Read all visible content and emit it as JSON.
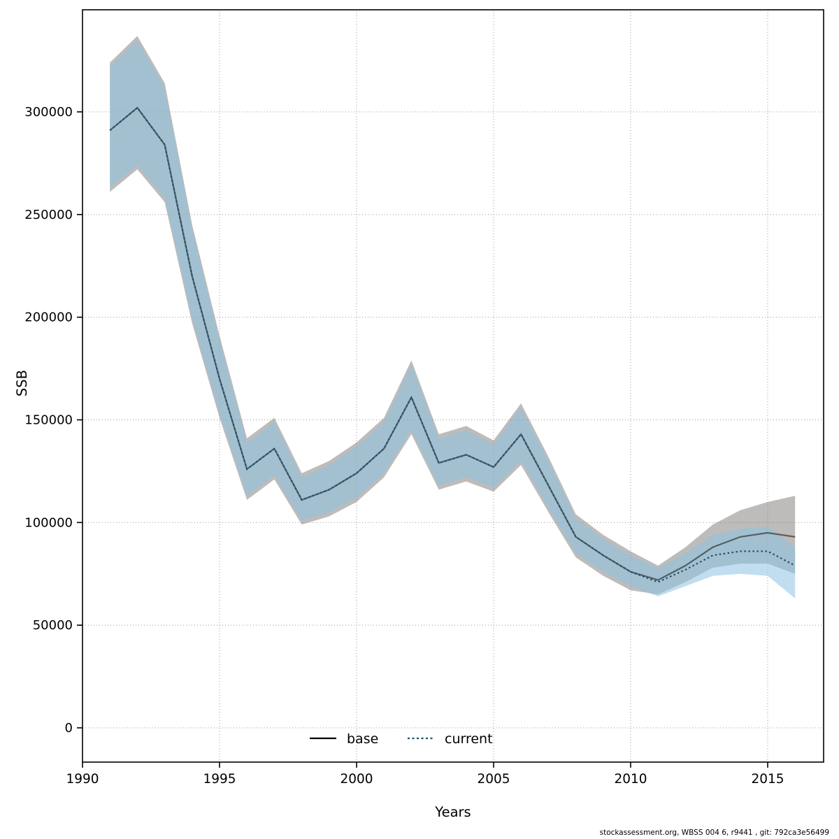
{
  "footer": {
    "text": "stockassessment.org, WBSS 004 6, r9441 , git: 792ca3e56499"
  },
  "chart_data": {
    "type": "line",
    "title": "",
    "xlabel": "Years",
    "ylabel": "SSB",
    "xlim": [
      1990,
      2017.3
    ],
    "ylim": [
      0,
      349000
    ],
    "grid": true,
    "legend_position": "bottom-center-inside",
    "x_ticks": [
      1990,
      1995,
      2000,
      2005,
      2010,
      2015
    ],
    "x_tick_labels": [
      "1990",
      "1995",
      "2000",
      "2005",
      "2010",
      "2015"
    ],
    "y_ticks": [
      0,
      50000,
      100000,
      150000,
      200000,
      250000,
      300000
    ],
    "y_tick_labels": [
      "0",
      "50000",
      "100000",
      "150000",
      "200000",
      "250000",
      "300000"
    ],
    "colors": {
      "grid": "#999999",
      "frame": "#000000",
      "base_line": "#000000",
      "base_band": "rgba(110,106,102,0.45)",
      "current_line": "#1b506e",
      "current_band": "rgba(140,195,225,0.55)"
    },
    "x": [
      1991,
      1992,
      1993,
      1994,
      1995,
      1996,
      1997,
      1998,
      1999,
      2000,
      2001,
      2002,
      2003,
      2004,
      2005,
      2006,
      2007,
      2008,
      2009,
      2010,
      2011,
      2012,
      2013,
      2014,
      2015,
      2016
    ],
    "series": [
      {
        "name": "base",
        "style": "solid",
        "mean": [
          291000,
          302000,
          284000,
          220000,
          170000,
          126000,
          136000,
          111000,
          116000,
          124000,
          136000,
          161000,
          129000,
          133000,
          127000,
          143000,
          118000,
          93000,
          84000,
          76000,
          72000,
          79000,
          88000,
          93000,
          95000,
          93000
        ],
        "lo": [
          261000,
          272000,
          256000,
          197000,
          151000,
          111000,
          121000,
          99000,
          103000,
          110000,
          122000,
          143000,
          116000,
          120000,
          115000,
          128000,
          105000,
          83000,
          74000,
          67000,
          65000,
          71000,
          78000,
          80000,
          80000,
          75000
        ],
        "hi": [
          324000,
          337000,
          314000,
          245000,
          191000,
          141000,
          151000,
          124000,
          130000,
          139000,
          151000,
          179000,
          143000,
          147000,
          140000,
          158000,
          132000,
          104000,
          94000,
          86000,
          79000,
          88000,
          99000,
          106000,
          110000,
          113000
        ]
      },
      {
        "name": "current",
        "style": "dotted",
        "mean": [
          291000,
          302000,
          284000,
          220000,
          170000,
          126000,
          136000,
          111000,
          116000,
          124000,
          136000,
          161000,
          129000,
          133000,
          127000,
          143000,
          118000,
          93000,
          84000,
          76000,
          71000,
          77000,
          84000,
          86000,
          86000,
          79000
        ],
        "lo": [
          263000,
          274000,
          258000,
          199000,
          153000,
          113000,
          123000,
          101000,
          105000,
          112000,
          124000,
          145000,
          118000,
          122000,
          117000,
          130000,
          107000,
          85000,
          76000,
          69000,
          64000,
          69000,
          74000,
          75000,
          74000,
          63000
        ],
        "hi": [
          322000,
          335000,
          312000,
          243000,
          189000,
          139000,
          149000,
          122000,
          128000,
          137000,
          149000,
          177000,
          141000,
          145000,
          138000,
          156000,
          130000,
          102000,
          92000,
          84000,
          78000,
          85000,
          94000,
          97000,
          98000,
          88000
        ]
      }
    ],
    "legend": [
      {
        "label": "base",
        "style": "solid",
        "color": "#000000"
      },
      {
        "label": "current",
        "style": "dotted",
        "color": "#1b506e"
      }
    ]
  }
}
